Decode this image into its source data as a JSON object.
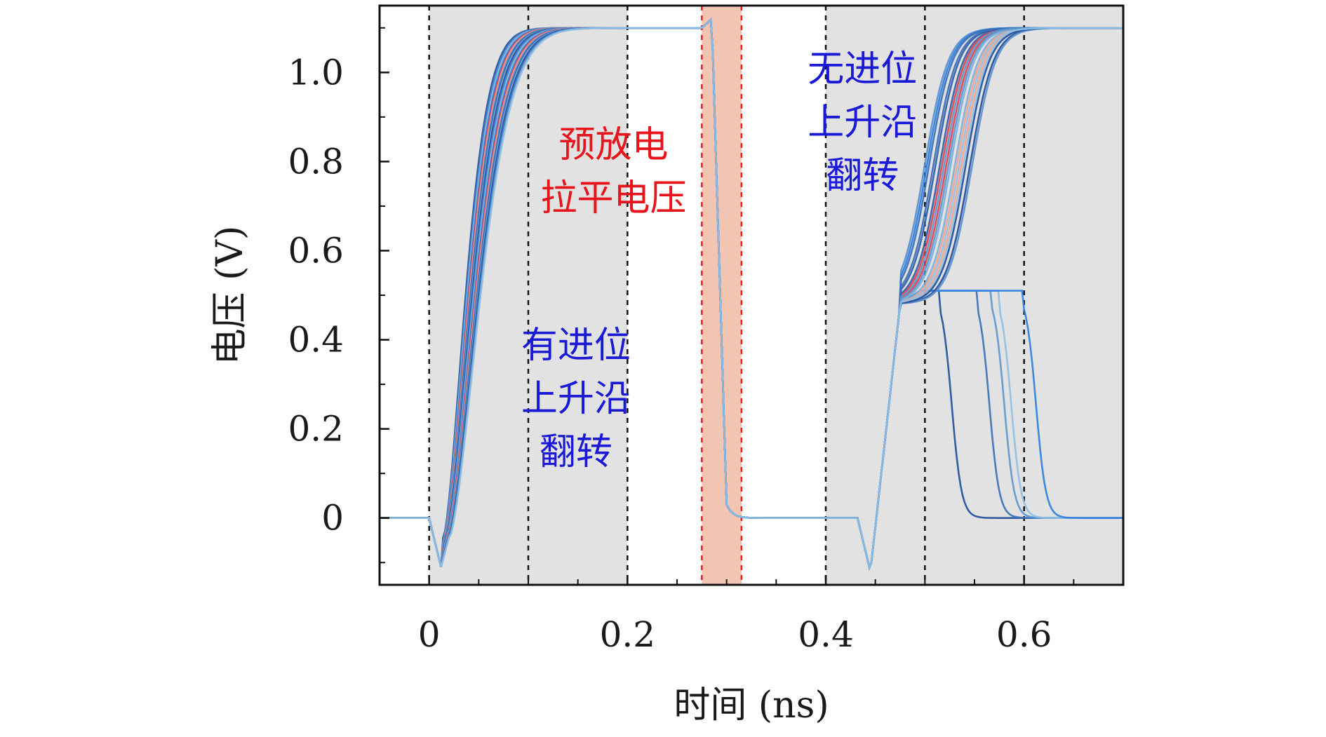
{
  "chart_data": {
    "type": "line",
    "xlabel": "时间 (ns)",
    "ylabel": "电压 (V)",
    "xlim": [
      -0.05,
      0.7
    ],
    "ylim": [
      -0.15,
      1.15
    ],
    "x_ticks": [
      0,
      0.2,
      0.4,
      0.6
    ],
    "x_tick_labels": [
      "0",
      "0.2",
      "0.4",
      "0.6"
    ],
    "y_ticks": [
      0,
      0.2,
      0.4,
      0.6,
      0.8,
      1.0
    ],
    "y_tick_labels": [
      "0",
      "0.2",
      "0.4",
      "0.6",
      "0.8",
      "1.0"
    ],
    "y_minor_step": 0.1,
    "shaded_regions": [
      {
        "x0": 0.0,
        "x1": 0.2,
        "color": "#e2e2e2"
      },
      {
        "x0": 0.275,
        "x1": 0.315,
        "color": "#f2c4b2"
      },
      {
        "x0": 0.4,
        "x1": 0.7,
        "color": "#e2e2e2"
      }
    ],
    "vlines_black": [
      0.0,
      0.1,
      0.2,
      0.4,
      0.5,
      0.6
    ],
    "vlines_red": [
      0.275,
      0.315
    ],
    "annotations": [
      {
        "lines": [
          "有进位",
          "上升沿",
          "翻转"
        ],
        "color": "#1a1ad6",
        "x": 0.148,
        "y": 0.36
      },
      {
        "lines": [
          "预放电",
          "拉平电压"
        ],
        "color": "#e8141c",
        "x": 0.186,
        "y": 0.81
      },
      {
        "lines": [
          "无进位",
          "上升沿",
          "翻转"
        ],
        "color": "#1a1ad6",
        "x": 0.437,
        "y": 0.98
      }
    ],
    "series_colors": [
      "#1f4e9a",
      "#3a6fb8",
      "#5b96d0",
      "#8fbfe3",
      "#2a7ee0",
      "#e0404a",
      "#f4a28a",
      "#5a8fcc",
      "#2f5ea8",
      "#7aaedc"
    ],
    "phase1": {
      "start": 0.0,
      "dip": -0.11,
      "dip_t": 0.012,
      "rise_t0": 0.014,
      "tau_range": [
        0.03,
        0.042
      ],
      "hold_v": 1.1
    },
    "precharge": {
      "peak_t": 0.285,
      "peak_v": 1.12,
      "fall_end_t": 0.3,
      "low_v": 0.0
    },
    "phase2": {
      "dip_t": 0.445,
      "dip_v": -0.12,
      "mid_t": 0.475,
      "mid_v": 0.48,
      "plateau_v": 0.51,
      "rise_end_range": [
        0.54,
        0.64
      ],
      "fall_times": [
        0.515,
        0.553,
        0.568,
        0.575,
        0.6
      ]
    }
  }
}
